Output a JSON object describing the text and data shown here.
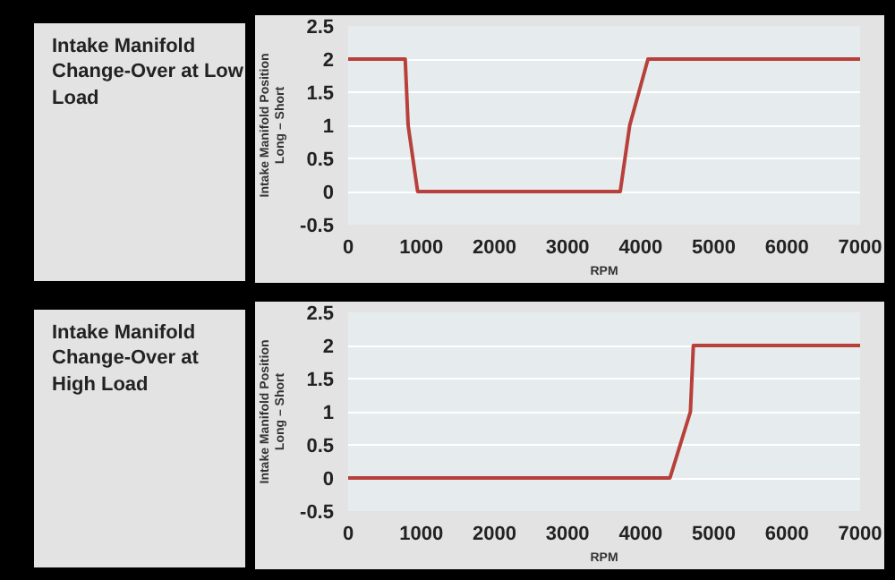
{
  "chart_data": [
    {
      "type": "line",
      "title": "Intake Manifold Change-Over at Low Load",
      "xlabel": "RPM",
      "ylabel": "Intake Manifold Position\nLong – Short",
      "x": [
        0,
        780,
        820,
        950,
        3720,
        3850,
        4100,
        7000
      ],
      "values": [
        2,
        2,
        1,
        0,
        0,
        1,
        2,
        2
      ],
      "color": "#b8403a",
      "xlim": [
        0,
        7000
      ],
      "ylim": [
        -0.5,
        2.5
      ],
      "xticks": [
        0,
        1000,
        2000,
        3000,
        4000,
        5000,
        6000,
        7000
      ],
      "yticks": [
        -0.5,
        0,
        0.5,
        1,
        1.5,
        2,
        2.5
      ],
      "grid": "y"
    },
    {
      "type": "line",
      "title": "Intake Manifold Change-Over at High Load",
      "xlabel": "RPM",
      "ylabel": "Intake Manifold Position\nLong – Short",
      "x": [
        0,
        4400,
        4680,
        4720,
        7000
      ],
      "values": [
        0,
        0,
        1,
        2,
        2
      ],
      "color": "#b8403a",
      "xlim": [
        0,
        7000
      ],
      "ylim": [
        -0.5,
        2.5
      ],
      "xticks": [
        0,
        1000,
        2000,
        3000,
        4000,
        5000,
        6000,
        7000
      ],
      "yticks": [
        -0.5,
        0,
        0.5,
        1,
        1.5,
        2,
        2.5
      ],
      "grid": "y"
    }
  ]
}
